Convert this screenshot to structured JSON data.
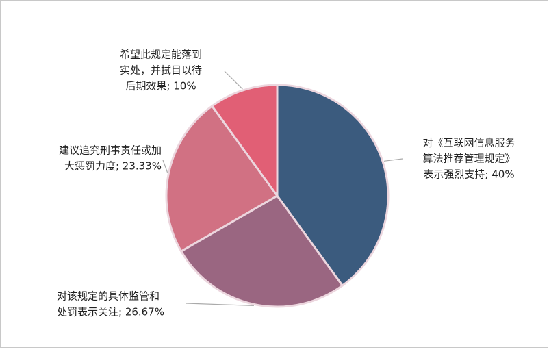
{
  "chart_data": {
    "type": "pie",
    "labels": [
      [
        "对《互联网信息服务",
        "算法推荐管理规定》",
        "表示强烈支持; 40%"
      ],
      [
        "对该规定的具体监管和",
        "处罚表示关注; 26.67%"
      ],
      [
        "建议追究刑事责任或加",
        "大惩罚力度; 23.33%"
      ],
      [
        "希望此规定能落到",
        "实处，并拭目以待",
        "后期效果; 10%"
      ]
    ],
    "values": [
      40,
      26.67,
      23.33,
      10
    ],
    "colors": [
      "#3b5b7e",
      "#9a6681",
      "#d17183",
      "#e15f75"
    ]
  }
}
